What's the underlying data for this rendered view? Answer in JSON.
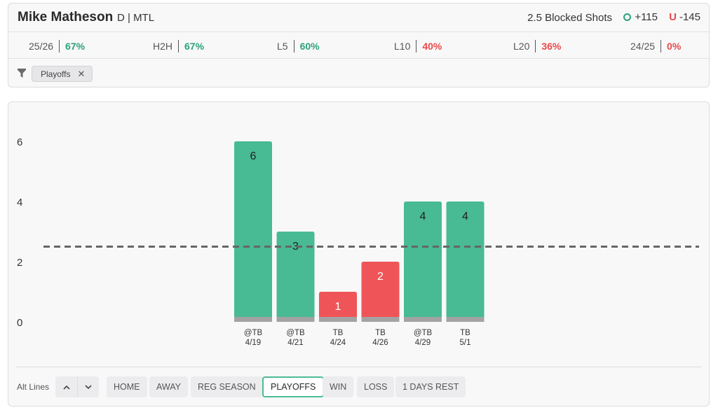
{
  "header": {
    "player_name": "Mike Matheson",
    "player_meta": "D | MTL",
    "market": "2.5 Blocked Shots",
    "over_odds": "+115",
    "under_letter": "U",
    "under_odds": "-145"
  },
  "stats": [
    {
      "label": "25/26",
      "value": "67%",
      "status": "green"
    },
    {
      "label": "H2H",
      "value": "67%",
      "status": "green"
    },
    {
      "label": "L5",
      "value": "60%",
      "status": "green"
    },
    {
      "label": "L10",
      "value": "40%",
      "status": "red"
    },
    {
      "label": "L20",
      "value": "36%",
      "status": "red"
    },
    {
      "label": "24/25",
      "value": "0%",
      "status": "red"
    }
  ],
  "filters": {
    "icon": "filter-icon",
    "chips": [
      {
        "label": "Playoffs",
        "close": "✕"
      }
    ]
  },
  "chart_data": {
    "type": "bar",
    "categories": [
      "@TB\n4/19",
      "@TB\n4/21",
      "TB\n4/24",
      "TB\n4/26",
      "@TB\n4/29",
      "TB\n5/1"
    ],
    "opponents": [
      "@TB",
      "@TB",
      "TB",
      "TB",
      "@TB",
      "TB"
    ],
    "dates": [
      "4/19",
      "4/21",
      "4/24",
      "4/26",
      "4/29",
      "5/1"
    ],
    "values": [
      6,
      3,
      1,
      2,
      4,
      4
    ],
    "line": 2.5,
    "ylim": [
      0,
      6
    ],
    "yticks": [
      0,
      2,
      4,
      6
    ],
    "colors": {
      "over": "#48ba94",
      "under": "#ef5558",
      "baseline": "#a3a3a3",
      "line": "#666666"
    },
    "grid": false
  },
  "toolbar": {
    "alt_lines_label": "Alt Lines",
    "up_icon": "chevron-up-icon",
    "down_icon": "chevron-down-icon",
    "buttons": [
      {
        "label": "HOME",
        "active": false
      },
      {
        "label": "AWAY",
        "active": false
      },
      {
        "label": "REG SEASON",
        "active": false
      },
      {
        "label": "PLAYOFFS",
        "active": true
      },
      {
        "label": "WIN",
        "active": false
      },
      {
        "label": "LOSS",
        "active": false
      },
      {
        "label": "1 DAYS REST",
        "active": false
      }
    ]
  }
}
